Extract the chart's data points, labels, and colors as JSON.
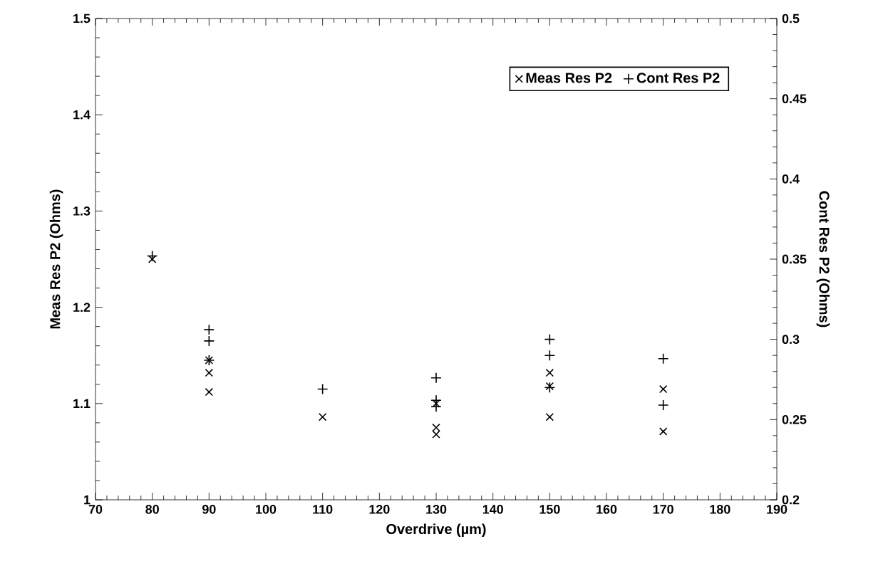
{
  "chart_data": {
    "type": "scatter",
    "xlabel": "Overdrive (µm)",
    "ylabel": "Meas Res P2 (Ohms)",
    "y2label": "Cont Res P2 (Ohms)",
    "xlim": [
      70,
      190
    ],
    "xticks": [
      70,
      80,
      90,
      100,
      110,
      120,
      130,
      140,
      150,
      160,
      170,
      180,
      190
    ],
    "ylim": [
      1,
      1.5
    ],
    "yticks": [
      1,
      1.1,
      1.2,
      1.3,
      1.4,
      1.5
    ],
    "y2lim": [
      0.2,
      0.5
    ],
    "y2ticks": [
      {
        "value": 0.2,
        "label": "0.2"
      },
      0.25,
      0.3,
      0.35,
      0.4,
      0.45,
      0.5
    ],
    "legend": "top right",
    "grid": false,
    "series": [
      {
        "name": "Meas Res P2",
        "color": "#000000",
        "marker": "cross",
        "x": [
          80,
          90,
          90,
          90,
          110,
          130,
          130,
          130,
          150,
          150,
          150,
          170,
          170
        ],
        "values": [
          1.25,
          1.145,
          1.132,
          1.112,
          1.086,
          1.1,
          1.075,
          1.068,
          1.132,
          1.118,
          1.086,
          1.115,
          1.071
        ]
      },
      {
        "name": "Cont Res P2",
        "color": "#000000",
        "marker": "plus",
        "axis": "y2",
        "x": [
          80,
          90,
          90,
          90,
          110,
          130,
          130,
          130,
          150,
          150,
          150,
          170,
          170
        ],
        "values": [
          0.352,
          0.306,
          0.299,
          0.287,
          0.269,
          0.276,
          0.262,
          0.258,
          0.3,
          0.29,
          0.27,
          0.288,
          0.259
        ]
      }
    ]
  }
}
